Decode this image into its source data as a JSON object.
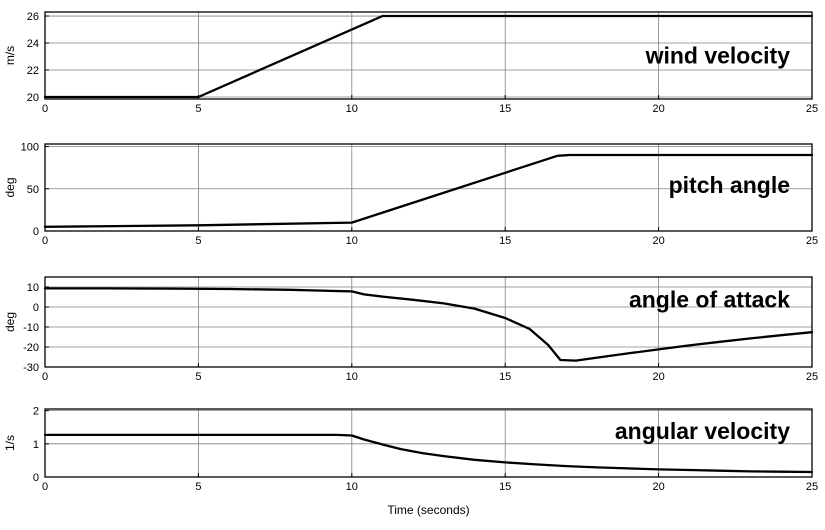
{
  "figure": {
    "xlabel": "Time (seconds)"
  },
  "chart_data": [
    {
      "type": "line",
      "title": "wind velocity",
      "ylabel": "m/s",
      "xlabel": "",
      "xlim": [
        0,
        25
      ],
      "ylim": [
        19.85,
        26.3
      ],
      "xticks": [
        0,
        5,
        10,
        15,
        20,
        25
      ],
      "yticks": [
        20,
        22,
        24,
        26
      ],
      "grid": true,
      "title_y_frac": 0.5,
      "x": [
        0,
        5,
        11,
        25
      ],
      "y": [
        20,
        20,
        26,
        26
      ]
    },
    {
      "type": "line",
      "title": "pitch angle",
      "ylabel": "deg",
      "xlabel": "",
      "xlim": [
        0,
        25
      ],
      "ylim": [
        0,
        103
      ],
      "xticks": [
        0,
        5,
        10,
        15,
        20,
        25
      ],
      "yticks": [
        0,
        50,
        100
      ],
      "grid": true,
      "title_y_frac": 0.47,
      "x": [
        0,
        5,
        10,
        16.7,
        17.1,
        25
      ],
      "y": [
        5,
        6.8,
        10,
        89,
        90,
        90
      ]
    },
    {
      "type": "line",
      "title": "angle of attack",
      "ylabel": "deg",
      "xlabel": "",
      "xlim": [
        0,
        25
      ],
      "ylim": [
        -30,
        15
      ],
      "xticks": [
        0,
        5,
        10,
        15,
        20,
        25
      ],
      "yticks": [
        -30,
        -20,
        -10,
        0,
        10
      ],
      "grid": true,
      "title_y_frac": 0.25,
      "x": [
        0,
        2,
        4,
        6,
        8,
        9,
        9.7,
        10,
        10.4,
        11,
        12,
        13,
        14,
        15,
        15.8,
        16.4,
        16.8,
        17.3,
        18,
        19,
        20,
        21,
        22,
        23,
        24,
        25
      ],
      "y": [
        9.3,
        9.3,
        9.2,
        9.0,
        8.6,
        8.2,
        7.9,
        7.8,
        6.3,
        5.2,
        3.6,
        1.8,
        -0.8,
        -5.5,
        -11,
        -19,
        -26.5,
        -26.8,
        -25.3,
        -23.2,
        -21.2,
        -19.2,
        -17.4,
        -15.7,
        -14.1,
        -12.6
      ]
    },
    {
      "type": "line",
      "title": "angular velocity",
      "ylabel": "1/s",
      "xlabel": "Time (seconds)",
      "xlim": [
        0,
        25
      ],
      "ylim": [
        0,
        2.05
      ],
      "xticks": [
        0,
        5,
        10,
        15,
        20,
        25
      ],
      "yticks": [
        0,
        1,
        2
      ],
      "grid": true,
      "title_y_frac": 0.32,
      "x": [
        0,
        2,
        4,
        6,
        8,
        9.5,
        10,
        10.4,
        11,
        11.6,
        12.3,
        13,
        14,
        15,
        16,
        17,
        18,
        19,
        20,
        21,
        22,
        23,
        24,
        25
      ],
      "y": [
        1.27,
        1.27,
        1.27,
        1.27,
        1.27,
        1.27,
        1.25,
        1.13,
        0.98,
        0.84,
        0.72,
        0.63,
        0.52,
        0.44,
        0.38,
        0.33,
        0.29,
        0.26,
        0.23,
        0.21,
        0.19,
        0.17,
        0.16,
        0.15
      ]
    }
  ]
}
